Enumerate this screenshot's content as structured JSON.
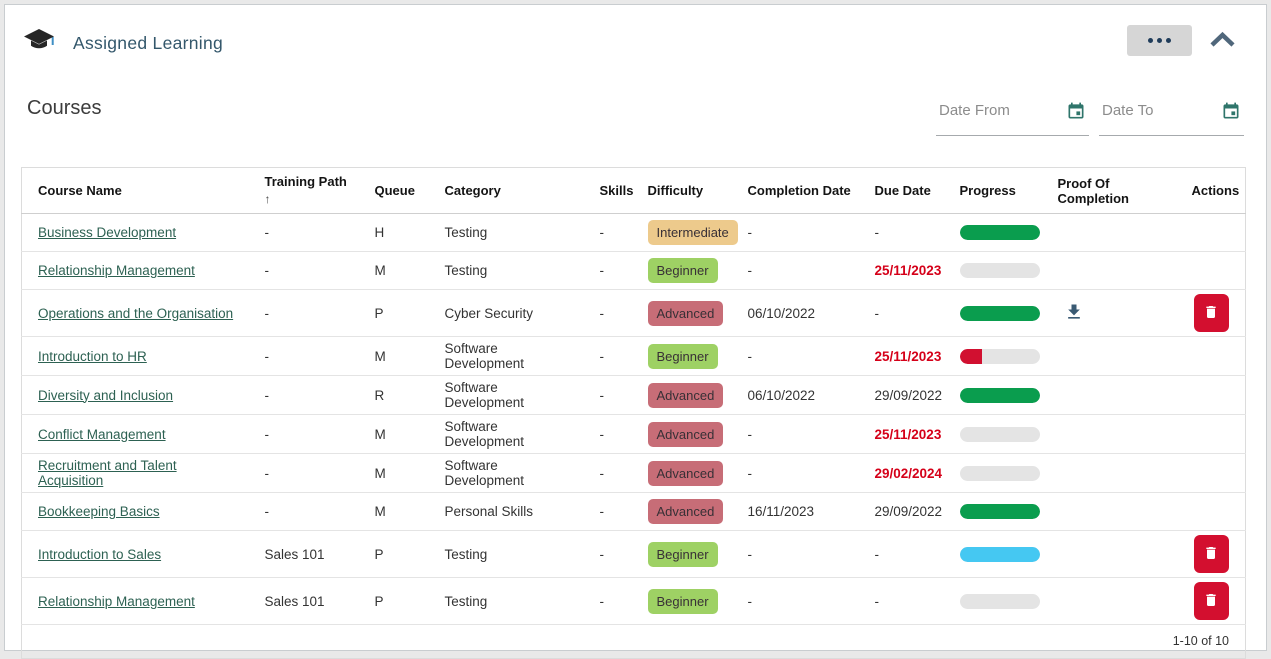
{
  "app": {
    "title": "Assigned Learning"
  },
  "section": {
    "title": "Courses"
  },
  "filters": {
    "date_from": {
      "label": "Date From",
      "value": ""
    },
    "date_to": {
      "label": "Date To",
      "value": ""
    }
  },
  "table": {
    "columns": [
      "Course Name",
      "Training Path",
      "Queue",
      "Category",
      "Skills",
      "Difficulty",
      "Completion Date",
      "Due Date",
      "Progress",
      "Proof Of Completion",
      "Actions"
    ],
    "sorted_column": "Training Path",
    "sort_direction": "ascending",
    "sort_icon": "↑",
    "rows": [
      {
        "course": "Business Development",
        "training_path": "-",
        "queue": "H",
        "category": "Testing",
        "skills": "-",
        "difficulty": "Intermediate",
        "completion_date": "-",
        "due_date": "-",
        "due_overdue": false,
        "progress_percent": 100,
        "progress_state": "complete",
        "proof_download": false,
        "can_delete": false
      },
      {
        "course": "Relationship Management",
        "training_path": "-",
        "queue": "M",
        "category": "Testing",
        "skills": "-",
        "difficulty": "Beginner",
        "completion_date": "-",
        "due_date": "25/11/2023",
        "due_overdue": true,
        "progress_percent": 0,
        "progress_state": "empty",
        "proof_download": false,
        "can_delete": false
      },
      {
        "course": "Operations and the Organisation",
        "training_path": "-",
        "queue": "P",
        "category": "Cyber Security",
        "skills": "-",
        "difficulty": "Advanced",
        "completion_date": "06/10/2022",
        "due_date": "-",
        "due_overdue": false,
        "progress_percent": 100,
        "progress_state": "complete",
        "proof_download": true,
        "can_delete": true
      },
      {
        "course": "Introduction to HR",
        "training_path": "-",
        "queue": "M",
        "category": "Software Development",
        "skills": "-",
        "difficulty": "Beginner",
        "completion_date": "-",
        "due_date": "25/11/2023",
        "due_overdue": true,
        "progress_percent": 28,
        "progress_state": "partial_overdue",
        "proof_download": false,
        "can_delete": false
      },
      {
        "course": "Diversity and Inclusion",
        "training_path": "-",
        "queue": "R",
        "category": "Software Development",
        "skills": "-",
        "difficulty": "Advanced",
        "completion_date": "06/10/2022",
        "due_date": "29/09/2022",
        "due_overdue": false,
        "progress_percent": 100,
        "progress_state": "complete",
        "proof_download": false,
        "can_delete": false
      },
      {
        "course": "Conflict Management",
        "training_path": "-",
        "queue": "M",
        "category": "Software Development",
        "skills": "-",
        "difficulty": "Advanced",
        "completion_date": "-",
        "due_date": "25/11/2023",
        "due_overdue": true,
        "progress_percent": 0,
        "progress_state": "empty",
        "proof_download": false,
        "can_delete": false
      },
      {
        "course": "Recruitment and Talent Acquisition",
        "training_path": "-",
        "queue": "M",
        "category": "Software Development",
        "skills": "-",
        "difficulty": "Advanced",
        "completion_date": "-",
        "due_date": "29/02/2024",
        "due_overdue": true,
        "progress_percent": 0,
        "progress_state": "empty",
        "proof_download": false,
        "can_delete": false
      },
      {
        "course": "Bookkeeping Basics",
        "training_path": "-",
        "queue": "M",
        "category": "Personal Skills",
        "skills": "-",
        "difficulty": "Advanced",
        "completion_date": "16/11/2023",
        "due_date": "29/09/2022",
        "due_overdue": false,
        "progress_percent": 100,
        "progress_state": "complete",
        "proof_download": false,
        "can_delete": false
      },
      {
        "course": "Introduction to Sales",
        "training_path": "Sales 101",
        "queue": "P",
        "category": "Testing",
        "skills": "-",
        "difficulty": "Beginner",
        "completion_date": "-",
        "due_date": "-",
        "due_overdue": false,
        "progress_percent": 100,
        "progress_state": "in_progress",
        "proof_download": false,
        "can_delete": true
      },
      {
        "course": "Relationship Management",
        "training_path": "Sales 101",
        "queue": "P",
        "category": "Testing",
        "skills": "-",
        "difficulty": "Beginner",
        "completion_date": "-",
        "due_date": "-",
        "due_overdue": false,
        "progress_percent": 0,
        "progress_state": "empty",
        "proof_download": false,
        "can_delete": true
      }
    ],
    "pagination": "1-10 of 10"
  },
  "colors": {
    "title_teal": "#33576b",
    "link_green": "#2d6152",
    "overdue_red": "#d50019",
    "delete_red": "#d30f2f",
    "calendar_teal": "#2f756b",
    "badges": {
      "Intermediate": "#edca8c",
      "Beginner": "#9ed164",
      "Advanced": "#c76d77"
    },
    "progress": {
      "complete": "#0a9d4e",
      "partial_overdue": "#d11030",
      "in_progress": "#45c8f2",
      "empty": "#e4e4e4",
      "track": "#e4e4e4"
    }
  }
}
